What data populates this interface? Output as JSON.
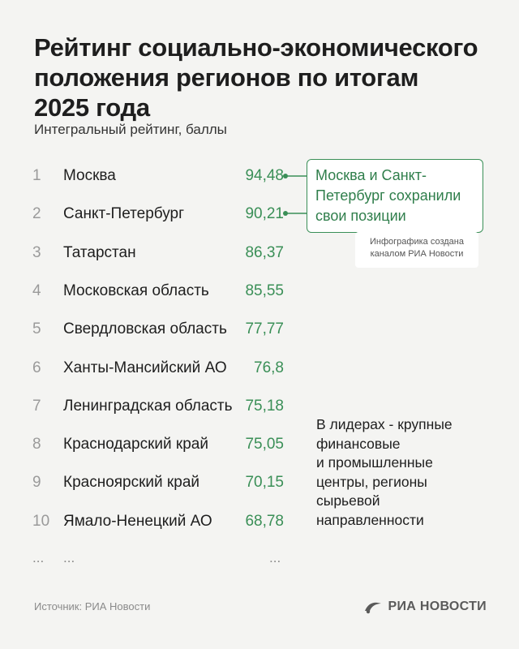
{
  "title_lines": [
    "Рейтинг социально-экономического",
    "положения регионов по итогам",
    "2025 года"
  ],
  "subtitle": "Интегральный рейтинг, баллы",
  "chart_data": {
    "type": "table",
    "title": "Рейтинг социально-экономического положения регионов по итогам 2025 года",
    "subtitle": "Интегральный рейтинг, баллы",
    "columns": [
      "rank",
      "region",
      "score"
    ],
    "rows": [
      {
        "rank": "1",
        "region": "Москва",
        "value": "94,48"
      },
      {
        "rank": "2",
        "region": "Санкт-Петербург",
        "value": "90,21"
      },
      {
        "rank": "3",
        "region": "Татарстан",
        "value": "86,37"
      },
      {
        "rank": "4",
        "region": "Московская область",
        "value": "85,55"
      },
      {
        "rank": "5",
        "region": "Свердловская область",
        "value": "77,77"
      },
      {
        "rank": "6",
        "region": "Ханты-Мансийский АО",
        "value": "76,8"
      },
      {
        "rank": "7",
        "region": "Ленинградская область",
        "value": "75,18"
      },
      {
        "rank": "8",
        "region": "Краснодарский край",
        "value": "75,05"
      },
      {
        "rank": "9",
        "region": "Красноярский край",
        "value": "70,15"
      },
      {
        "rank": "10",
        "region": "Ямало-Ненецкий АО",
        "value": "68,78"
      }
    ],
    "ellipsis": "..."
  },
  "callout": {
    "lines": [
      "Москва и Санкт-",
      "Петербург сохранили",
      "свои позиции"
    ]
  },
  "credit": {
    "lines": [
      "Инфографика создана",
      "каналом РИА Новости"
    ]
  },
  "note": {
    "lines": [
      "В лидерах - крупные",
      "финансовые",
      "и промышленные",
      "центры, регионы",
      "сырьевой",
      "направленности"
    ]
  },
  "source": "Источник: РИА Новости",
  "logo": "РИА НОВОСТИ",
  "colors": {
    "accent": "#3a8f57",
    "background": "#f4f4f2",
    "rank": "#9a9a9a"
  }
}
